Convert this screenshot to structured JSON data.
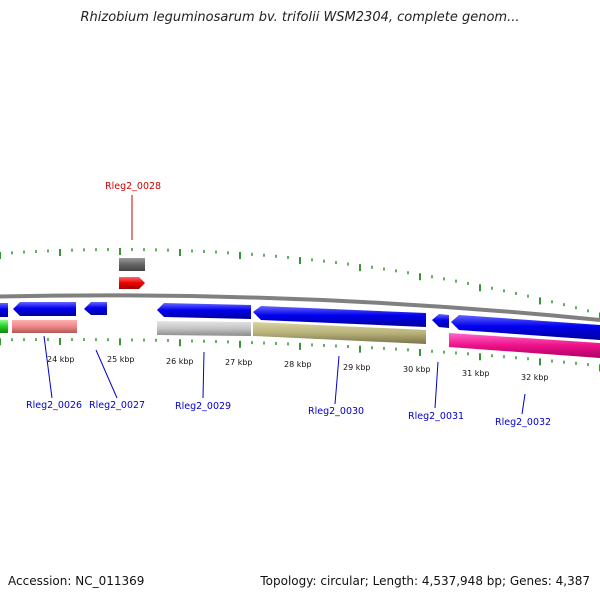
{
  "title": "Rhizobium leguminosarum bv. trifolii WSM2304, complete genom...",
  "footer": {
    "accession": "Accession: NC_011369",
    "summary": "Topology: circular; Length: 4,537,948 bp; Genes: 4,387"
  },
  "colors": {
    "cds_blue": "#0000ee",
    "label_blue": "#0000cc",
    "label_red": "#cc0000",
    "tick_green": "#228b22",
    "backbone": "#888888"
  },
  "scale_labels": [
    "24 kbp",
    "25 kbp",
    "26 kbp",
    "27 kbp",
    "28 kbp",
    "29 kbp",
    "30 kbp",
    "31 kbp",
    "32 kbp"
  ],
  "gene_labels": [
    {
      "text": "Rleg2_0026",
      "color": "blue"
    },
    {
      "text": "Rleg2_0027",
      "color": "blue"
    },
    {
      "text": "Rleg2_0028",
      "color": "red"
    },
    {
      "text": "Rleg2_0029",
      "color": "blue"
    },
    {
      "text": "Rleg2_0030",
      "color": "blue"
    },
    {
      "text": "Rleg2_0031",
      "color": "blue"
    },
    {
      "text": "Rleg2_0032",
      "color": "blue"
    }
  ]
}
